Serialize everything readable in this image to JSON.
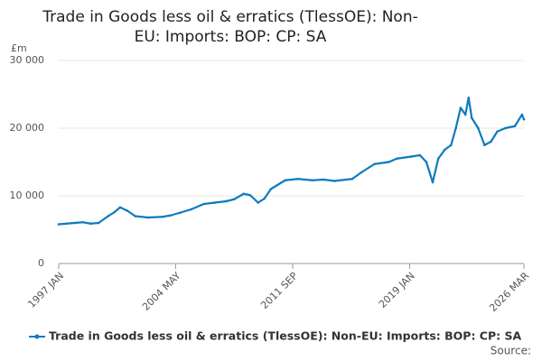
{
  "chart_data": {
    "type": "line",
    "title": "Trade in Goods less oil & erratics (TlessOE): Non-EU: Imports: BOP: CP: SA",
    "y_unit": "£m",
    "source": "Source:",
    "xlim": [
      1997.0,
      2026.17
    ],
    "xticks": [
      {
        "value": 1997.0,
        "label": "1997 JAN"
      },
      {
        "value": 2004.33,
        "label": "2004 MAY"
      },
      {
        "value": 2011.67,
        "label": "2011 SEP"
      },
      {
        "value": 2019.0,
        "label": "2019 JAN"
      },
      {
        "value": 2026.17,
        "label": "2026 MAR"
      }
    ],
    "ylim": [
      0,
      30000
    ],
    "yticks": [
      0,
      {
        "value": 10000,
        "label": "10 000"
      },
      {
        "value": 20000,
        "label": "20 000"
      },
      {
        "value": 30000,
        "label": "30 000"
      }
    ],
    "grid": true,
    "series": [
      {
        "name": "Trade in Goods less oil & erratics (TlessOE): Non-EU: Imports: BOP: CP: SA",
        "color": "#0e7bbf",
        "x": [
          1997.0,
          1997.5,
          1998.0,
          1998.5,
          1999.0,
          1999.5,
          2000.1,
          2000.5,
          2000.85,
          2001.3,
          2001.8,
          2002.6,
          2003.5,
          2004.0,
          2004.6,
          2005.3,
          2006.1,
          2006.8,
          2007.5,
          2008.0,
          2008.6,
          2009.0,
          2009.5,
          2009.9,
          2010.3,
          2011.2,
          2012.0,
          2012.9,
          2013.6,
          2014.3,
          2015.4,
          2016.0,
          2016.8,
          2017.7,
          2018.2,
          2019.1,
          2019.65,
          2020.05,
          2020.45,
          2020.8,
          2021.2,
          2021.6,
          2021.9,
          2022.2,
          2022.5,
          2022.7,
          2022.9,
          2023.3,
          2023.7,
          2024.1,
          2024.5,
          2025.0,
          2025.6,
          2026.05,
          2026.17
        ],
        "values": [
          5800,
          5900,
          6000,
          6100,
          5900,
          6000,
          7000,
          7600,
          8300,
          7800,
          7000,
          6800,
          6900,
          7100,
          7500,
          8000,
          8800,
          9000,
          9200,
          9500,
          10300,
          10100,
          9000,
          9600,
          11000,
          12300,
          12500,
          12300,
          12400,
          12200,
          12500,
          13500,
          14700,
          15000,
          15500,
          15800,
          16000,
          15000,
          12000,
          15500,
          16800,
          17500,
          20000,
          23000,
          22000,
          24500,
          21500,
          20000,
          17500,
          18000,
          19500,
          20000,
          20300,
          22000,
          21300
        ]
      }
    ]
  }
}
